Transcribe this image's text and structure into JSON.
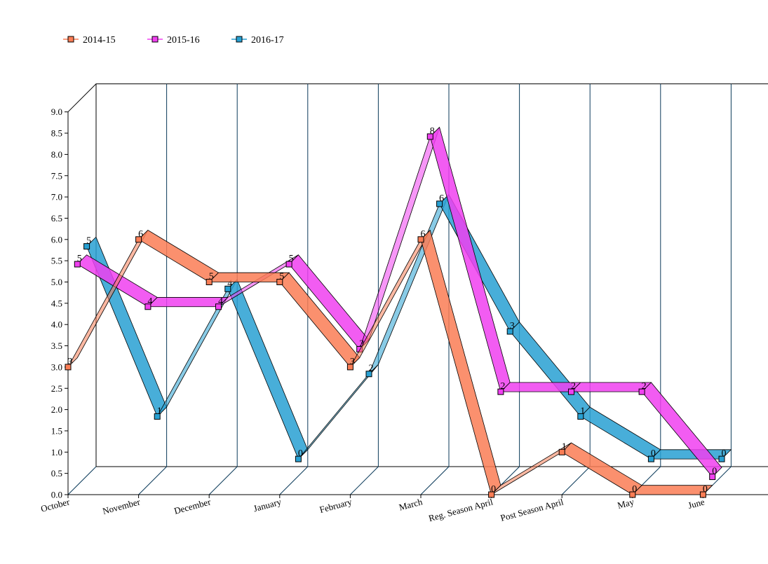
{
  "chart_data": {
    "type": "line",
    "title": "",
    "xlabel": "",
    "ylabel": "",
    "categories": [
      "October",
      "November",
      "December",
      "January",
      "February",
      "March",
      "Reg. Season April",
      "Post Season April",
      "May",
      "June"
    ],
    "ylim": [
      0,
      9
    ],
    "ytick_step": 0.5,
    "ytick_labels": [
      "0.0",
      "0.5",
      "1.0",
      "1.5",
      "2.0",
      "2.5",
      "3.0",
      "3.5",
      "4.0",
      "4.5",
      "5.0",
      "5.5",
      "6.0",
      "6.5",
      "7.0",
      "7.5",
      "8.0",
      "8.5",
      "9.0"
    ],
    "grid": "vertical",
    "three_d": true,
    "legend_position": "top-left",
    "series": [
      {
        "name": "2014-15",
        "color": "#fa7d55",
        "values": [
          3,
          6,
          5,
          5,
          3,
          6,
          0,
          1,
          0,
          0
        ]
      },
      {
        "name": "2015-16",
        "color": "#f040f0",
        "values": [
          5,
          4,
          4,
          5,
          3,
          8,
          2,
          2,
          2,
          0
        ]
      },
      {
        "name": "2016-17",
        "color": "#28a0d2",
        "values": [
          5,
          1,
          4,
          0,
          2,
          6,
          3,
          1,
          0,
          0
        ]
      }
    ],
    "plotted_values": [
      [
        3,
        6,
        5,
        5,
        3,
        6,
        0,
        1,
        0,
        0
      ],
      [
        5.2,
        4.2,
        4.2,
        5.2,
        3.2,
        8.2,
        2.2,
        2.2,
        2.2,
        0.2
      ],
      [
        5.4,
        1.4,
        4.4,
        0.4,
        2.4,
        6.4,
        3.4,
        1.4,
        0.4,
        0.4
      ]
    ]
  }
}
